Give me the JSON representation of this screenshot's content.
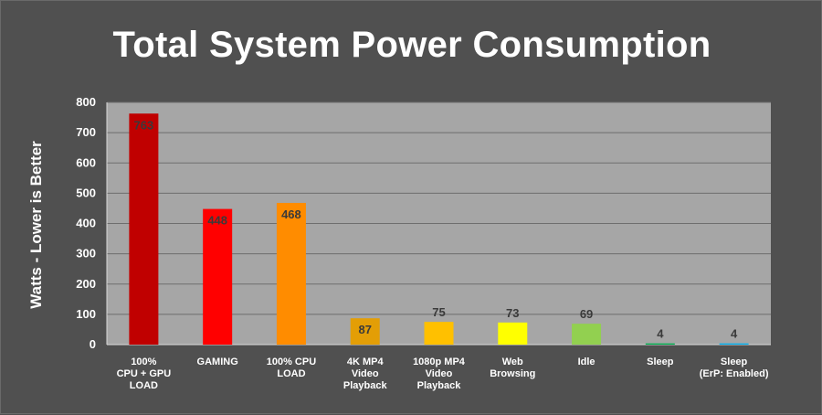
{
  "chart_data": {
    "type": "bar",
    "title": "Total System Power Consumption",
    "ylabel": "Watts - Lower is Better",
    "xlabel": "",
    "ylim": [
      0,
      800
    ],
    "yticks": [
      "0",
      "100",
      "200",
      "300",
      "400",
      "500",
      "600",
      "700",
      "800"
    ],
    "grid": true,
    "categories": [
      [
        "100%",
        "CPU + GPU",
        "LOAD"
      ],
      [
        "GAMING"
      ],
      [
        "100% CPU",
        "LOAD"
      ],
      [
        "4K MP4",
        "Video",
        "Playback"
      ],
      [
        "1080p MP4",
        "Video",
        "Playback"
      ],
      [
        "Web",
        "Browsing"
      ],
      [
        "Idle"
      ],
      [
        "Sleep"
      ],
      [
        "Sleep",
        "(ErP: Enabled)"
      ]
    ],
    "values": [
      763,
      448,
      468,
      87,
      75,
      73,
      69,
      4,
      4
    ],
    "data_labels": [
      "763",
      "448",
      "468",
      "87",
      "75",
      "73",
      "69",
      "4",
      "4"
    ],
    "colors": [
      "#c00000",
      "#ff0000",
      "#ff8c00",
      "#e39e06",
      "#ffc000",
      "#ffff00",
      "#92d050",
      "#00b050",
      "#00b0f0"
    ],
    "background": "#4f4f4f",
    "plot_background": "#a6a6a6"
  }
}
